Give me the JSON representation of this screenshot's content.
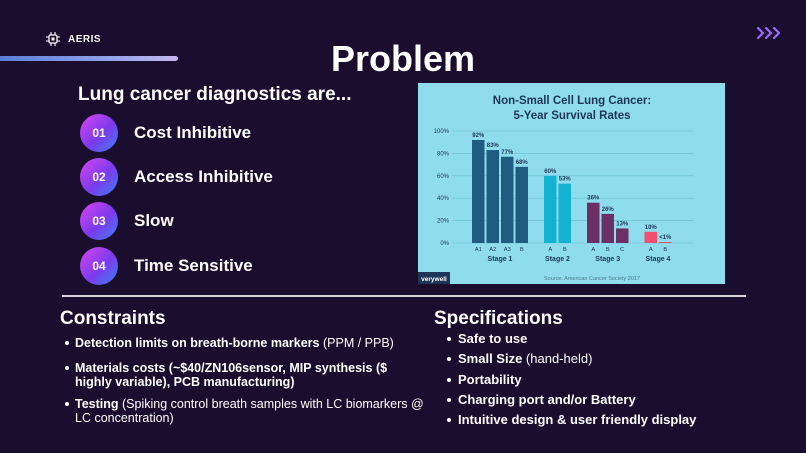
{
  "brand": {
    "name": "AERIS",
    "mark_icon": "circuit-chip-icon",
    "bar_color": "#7f95e2"
  },
  "nav": {
    "next_icon": "triple-chevron-right-icon",
    "accent": "#9b6bff"
  },
  "title": "Problem",
  "subhead": "Lung cancer diagnostics are...",
  "issues": [
    {
      "num": "01",
      "label": "Cost Inhibitive"
    },
    {
      "num": "02",
      "label": "Access Inhibitive"
    },
    {
      "num": "03",
      "label": "Slow"
    },
    {
      "num": "04",
      "label": "Time Sensitive"
    }
  ],
  "chart_data": {
    "type": "bar",
    "title": "Non-Small Cell Lung Cancer:",
    "subtitle": "5-Year Survival Rates",
    "ylim": [
      0,
      100
    ],
    "yticks": [
      "0%",
      "20%",
      "40%",
      "60%",
      "80%",
      "100%"
    ],
    "grid": true,
    "source": "Source: American Cancer Society 2017",
    "logo": "verywell",
    "groups": [
      {
        "name": "Stage 1",
        "color": "#1e5d80",
        "bars": [
          {
            "label": "A1",
            "value": 92,
            "text": "92%"
          },
          {
            "label": "A2",
            "value": 83,
            "text": "83%"
          },
          {
            "label": "A3",
            "value": 77,
            "text": "77%"
          },
          {
            "label": "B",
            "value": 68,
            "text": "68%"
          }
        ]
      },
      {
        "name": "Stage 2",
        "color": "#12b3d2",
        "bars": [
          {
            "label": "A",
            "value": 60,
            "text": "60%"
          },
          {
            "label": "B",
            "value": 53,
            "text": "53%"
          }
        ]
      },
      {
        "name": "Stage 3",
        "color": "#6b2f66",
        "bars": [
          {
            "label": "A",
            "value": 36,
            "text": "36%"
          },
          {
            "label": "B",
            "value": 26,
            "text": "26%"
          },
          {
            "label": "C",
            "value": 13,
            "text": "13%"
          }
        ]
      },
      {
        "name": "Stage 4",
        "color": "#f0506e",
        "bars": [
          {
            "label": "A",
            "value": 10,
            "text": "10%"
          },
          {
            "label": "B",
            "value": 0.8,
            "text": "<1%"
          }
        ]
      }
    ]
  },
  "constraints": {
    "title": "Constraints",
    "items": [
      {
        "bold": "Detection limits on breath-borne markers",
        "rest": " (PPM / PPB)"
      },
      {
        "bold": "Materials costs (~$40/ZN106sensor, MIP synthesis ($ highly variable), PCB manufacturing)",
        "rest": ""
      },
      {
        "bold": "Testing",
        "rest": " (Spiking control breath samples with LC biomarkers @ LC concentration)"
      }
    ]
  },
  "specifications": {
    "title": "Specifications",
    "items": [
      {
        "bold": "Safe to use",
        "rest": ""
      },
      {
        "bold": "Small Size",
        "rest": " (hand-held)"
      },
      {
        "bold": "Portability",
        "rest": ""
      },
      {
        "bold": "Charging port and/or Battery",
        "rest": ""
      },
      {
        "bold": "Intuitive design & user friendly display",
        "rest": ""
      }
    ]
  }
}
